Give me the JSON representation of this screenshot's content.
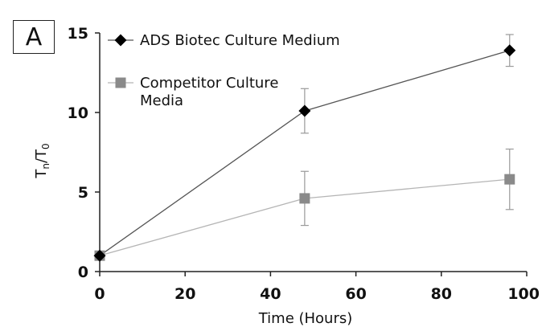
{
  "panel_label": "A",
  "chart_data": {
    "type": "line",
    "title": "",
    "xlabel": "Time (Hours)",
    "ylabel_main": "T",
    "ylabel_sub_num": "n",
    "ylabel_sep": "/T",
    "ylabel_sub_den": "0",
    "xlim": [
      0,
      100
    ],
    "ylim": [
      0,
      15
    ],
    "xticks": [
      0,
      20,
      40,
      60,
      80,
      100
    ],
    "yticks": [
      0,
      5,
      10,
      15
    ],
    "legend_position": "top-left",
    "series": [
      {
        "name": "ADS Biotec Culture Medium",
        "legend_lines": [
          "ADS Biotec Culture Medium"
        ],
        "marker": "diamond",
        "color": "#000000",
        "line_color": "#555555",
        "x": [
          0,
          48,
          96
        ],
        "y": [
          1,
          10.1,
          13.9
        ],
        "error": [
          0,
          1.4,
          1.0
        ]
      },
      {
        "name": "Competitor Culture Media",
        "legend_lines": [
          "Competitor Culture",
          "Media"
        ],
        "marker": "square",
        "color": "#8a8a8a",
        "line_color": "#b5b5b5",
        "x": [
          0,
          48,
          96
        ],
        "y": [
          1,
          4.6,
          5.8
        ],
        "error": [
          0,
          1.7,
          1.9
        ]
      }
    ]
  }
}
